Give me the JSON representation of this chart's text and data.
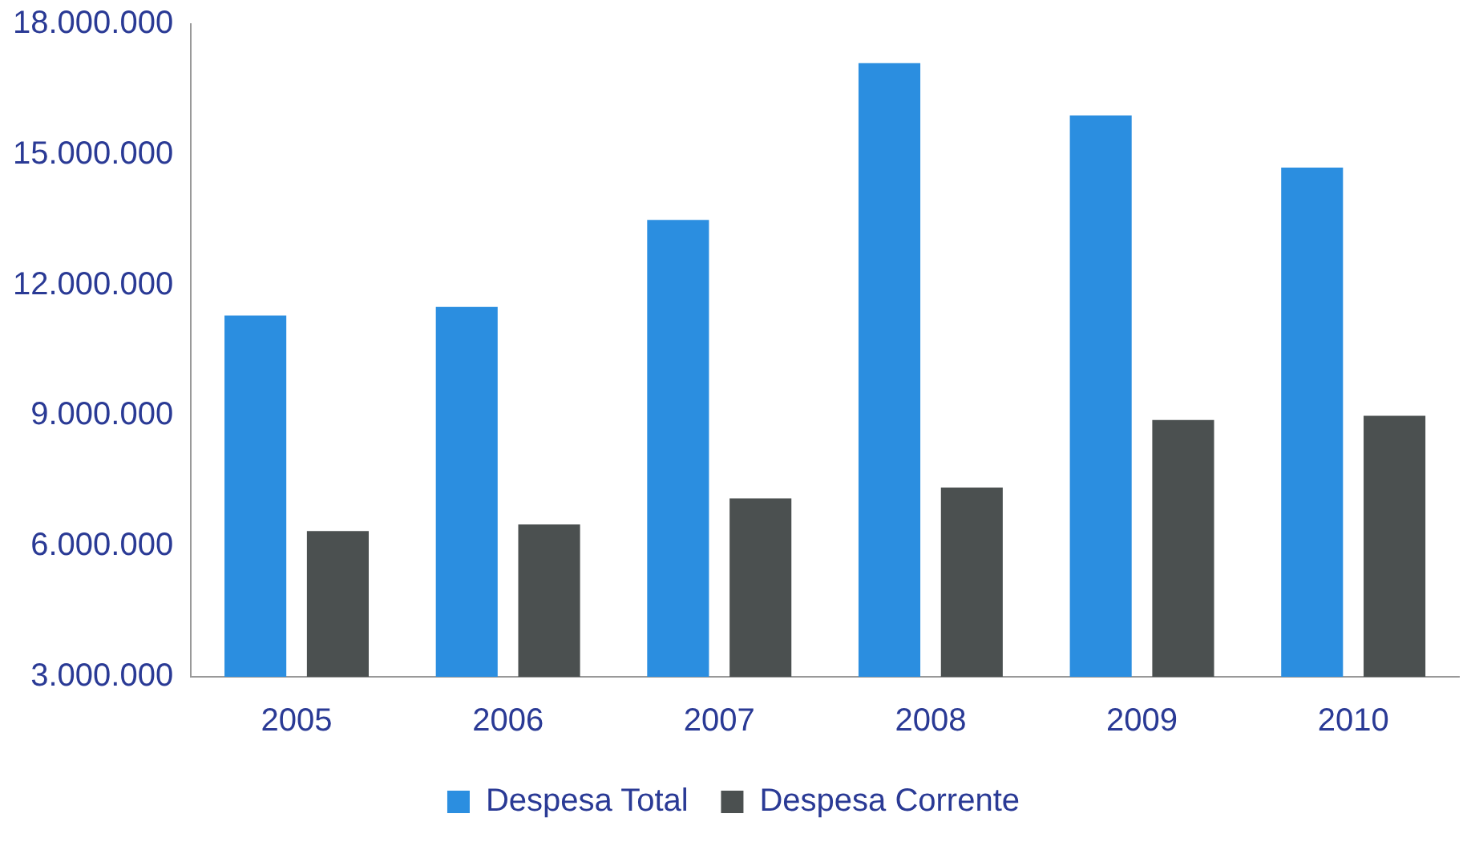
{
  "chart_data": {
    "type": "bar",
    "categories": [
      "2005",
      "2006",
      "2007",
      "2008",
      "2009",
      "2010"
    ],
    "series": [
      {
        "name": "Despesa Total",
        "color": "#2b8ee0",
        "values": [
          11300000,
          11500000,
          13500000,
          17100000,
          15900000,
          14700000
        ]
      },
      {
        "name": "Despesa Corrente",
        "color": "#4b5050",
        "values": [
          6350000,
          6500000,
          7100000,
          7350000,
          8900000,
          9000000
        ]
      }
    ],
    "ylim": [
      3000000,
      18000000
    ],
    "yticks": [
      {
        "value": 3000000,
        "label": "3.000.000"
      },
      {
        "value": 6000000,
        "label": "6.000.000"
      },
      {
        "value": 9000000,
        "label": "9.000.000"
      },
      {
        "value": 12000000,
        "label": "12.000.000"
      },
      {
        "value": 15000000,
        "label": "15.000.000"
      },
      {
        "value": 18000000,
        "label": "18.000.000"
      }
    ],
    "grid": false,
    "legend": "bottom"
  }
}
